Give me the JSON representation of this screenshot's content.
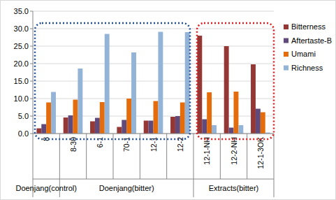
{
  "chart_data": {
    "type": "bar",
    "categories": [
      "8",
      "8-30",
      "6-1",
      "70-1",
      "12-1",
      "12-2",
      "12-1-NH",
      "12-2-NH",
      "12-1-3OK"
    ],
    "groups": [
      {
        "label": "Doenjang(control)",
        "count": 1
      },
      {
        "label": "Doenjang(bitter)",
        "count": 5
      },
      {
        "label": "Extracts(bitter)",
        "count": 3
      }
    ],
    "series": [
      {
        "name": "Bitterness",
        "color": "#953735",
        "values": [
          1.5,
          4.6,
          3.5,
          1.9,
          3.7,
          4.8,
          28.0,
          25.0,
          19.8
        ]
      },
      {
        "name": "Aftertaste-B",
        "color": "#604a7b",
        "values": [
          2.7,
          5.2,
          4.5,
          3.9,
          3.7,
          5.0,
          4.1,
          1.7,
          7.1
        ]
      },
      {
        "name": "Umami",
        "color": "#e46c0a",
        "values": [
          8.9,
          9.7,
          9.0,
          10.0,
          9.3,
          8.9,
          11.8,
          12.0,
          6.1
        ]
      },
      {
        "name": "Richness",
        "color": "#93b3d7",
        "values": [
          11.9,
          18.6,
          28.5,
          23.2,
          29.1,
          29.0,
          2.4,
          2.4,
          0.3
        ]
      }
    ],
    "ylim": [
      0,
      35
    ],
    "yticks": [
      {
        "value": 0,
        "label": "0.0"
      },
      {
        "value": 5,
        "label": "5.0"
      },
      {
        "value": 10,
        "label": "10.0"
      },
      {
        "value": 15,
        "label": "15.0"
      },
      {
        "value": 20,
        "label": "20.0"
      },
      {
        "value": 25,
        "label": "25.0"
      },
      {
        "value": 30,
        "label": "30.0"
      },
      {
        "value": 35,
        "label": "35.0"
      }
    ],
    "grid": true,
    "legend": "right"
  }
}
